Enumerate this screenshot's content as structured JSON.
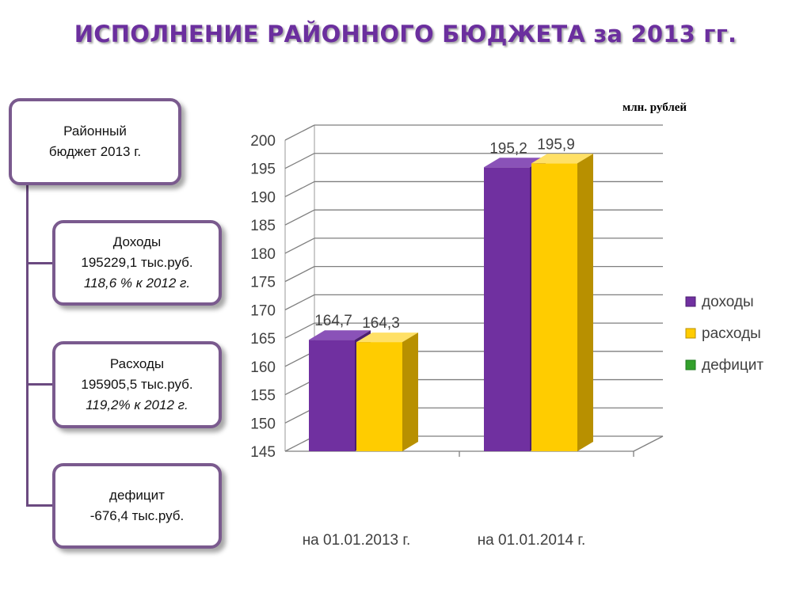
{
  "title": "ИСПОЛНЕНИЕ РАЙОННОГО БЮДЖЕТА за 2013 гг.",
  "tree": {
    "root": {
      "line1": "Районный",
      "line2": "бюджет 2013 г."
    },
    "income": {
      "label": "Доходы",
      "amount": "195229,1 тыс.руб.",
      "growth": "118,6 % к 2012 г."
    },
    "expense": {
      "label": "Расходы",
      "amount": "195905,5 тыс.руб.",
      "growth": "119,2% к 2012 г."
    },
    "deficit": {
      "label": "дефицит",
      "amount": "-676,4 тыс.руб."
    }
  },
  "unit_label": "млн. рублей",
  "chart_data": {
    "type": "bar",
    "categories": [
      "на 01.01.2013 г.",
      "на 01.01.2014 г."
    ],
    "series": [
      {
        "name": "доходы",
        "values": [
          164.7,
          195.2
        ],
        "labels": [
          "164,7",
          "195,2"
        ],
        "color": "#7030a0"
      },
      {
        "name": "расходы",
        "values": [
          164.3,
          195.9
        ],
        "labels": [
          "164,3",
          "195,9"
        ],
        "color": "#ffcc00"
      },
      {
        "name": "дефицит",
        "values": [
          null,
          null
        ],
        "labels": [
          "",
          ""
        ],
        "color": "#33a02c"
      }
    ],
    "yticks": [
      "145",
      "150",
      "155",
      "160",
      "165",
      "170",
      "175",
      "180",
      "185",
      "190",
      "195",
      "200"
    ],
    "ylim": [
      145,
      200
    ],
    "grid": true,
    "legend": "right"
  }
}
